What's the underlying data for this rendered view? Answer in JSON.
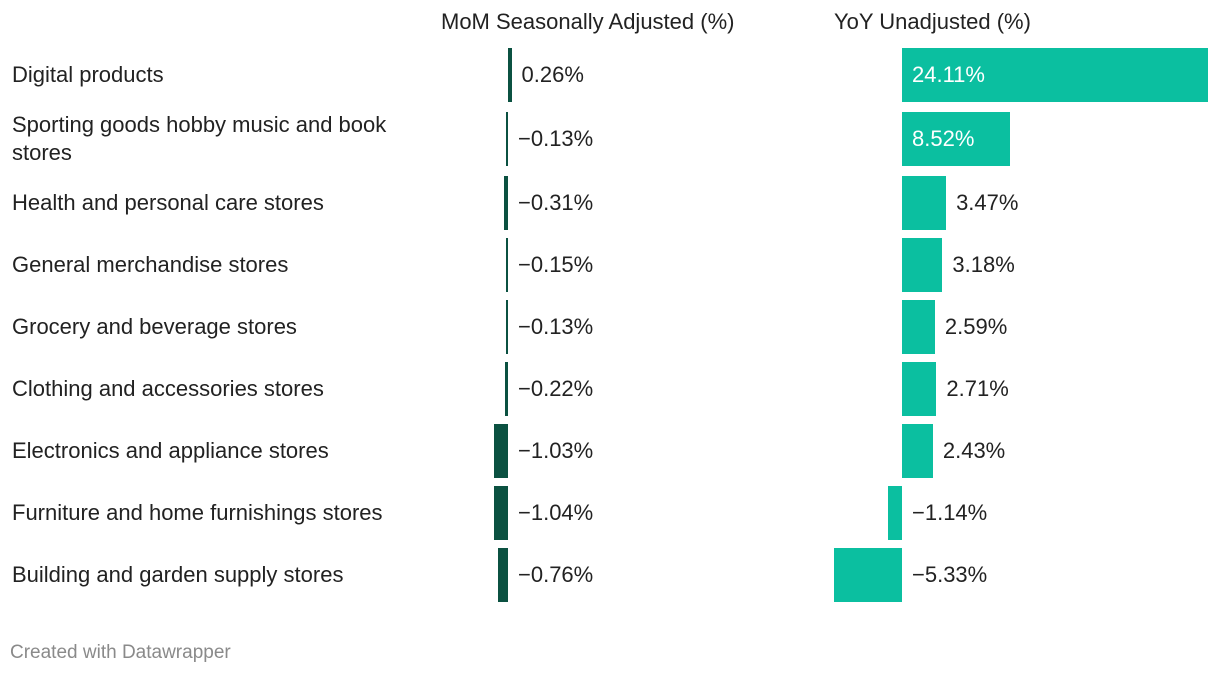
{
  "chart_data": {
    "type": "bar",
    "columns": [
      {
        "title": "MoM Seasonally Adjusted (%)",
        "bar_color": "#0b5141",
        "values": [
          0.26,
          -0.13,
          -0.31,
          -0.15,
          -0.13,
          -0.22,
          -1.03,
          -1.04,
          -0.76
        ],
        "value_labels": [
          "0.26%",
          "−0.13%",
          "−0.31%",
          "−0.15%",
          "−0.13%",
          "−0.22%",
          "−1.03%",
          "−1.04%",
          "−0.76%"
        ]
      },
      {
        "title": "YoY Unadjusted (%)",
        "bar_color": "#0bbfa0",
        "values": [
          24.11,
          8.52,
          3.47,
          3.18,
          2.59,
          2.71,
          2.43,
          -1.14,
          -5.33
        ],
        "value_labels": [
          "24.11%",
          "8.52%",
          "3.47%",
          "3.18%",
          "2.59%",
          "2.71%",
          "2.43%",
          "−1.14%",
          "−5.33%"
        ]
      }
    ],
    "categories": [
      "Digital products",
      "Sporting goods hobby music and book stores",
      "Health and personal care stores",
      "General merchandise stores",
      "Grocery and beverage stores",
      "Clothing and accessories stores",
      "Electronics and appliance stores",
      "Furniture and home furnishings stores",
      "Building and garden supply stores"
    ]
  },
  "footer": "Created with Datawrapper"
}
